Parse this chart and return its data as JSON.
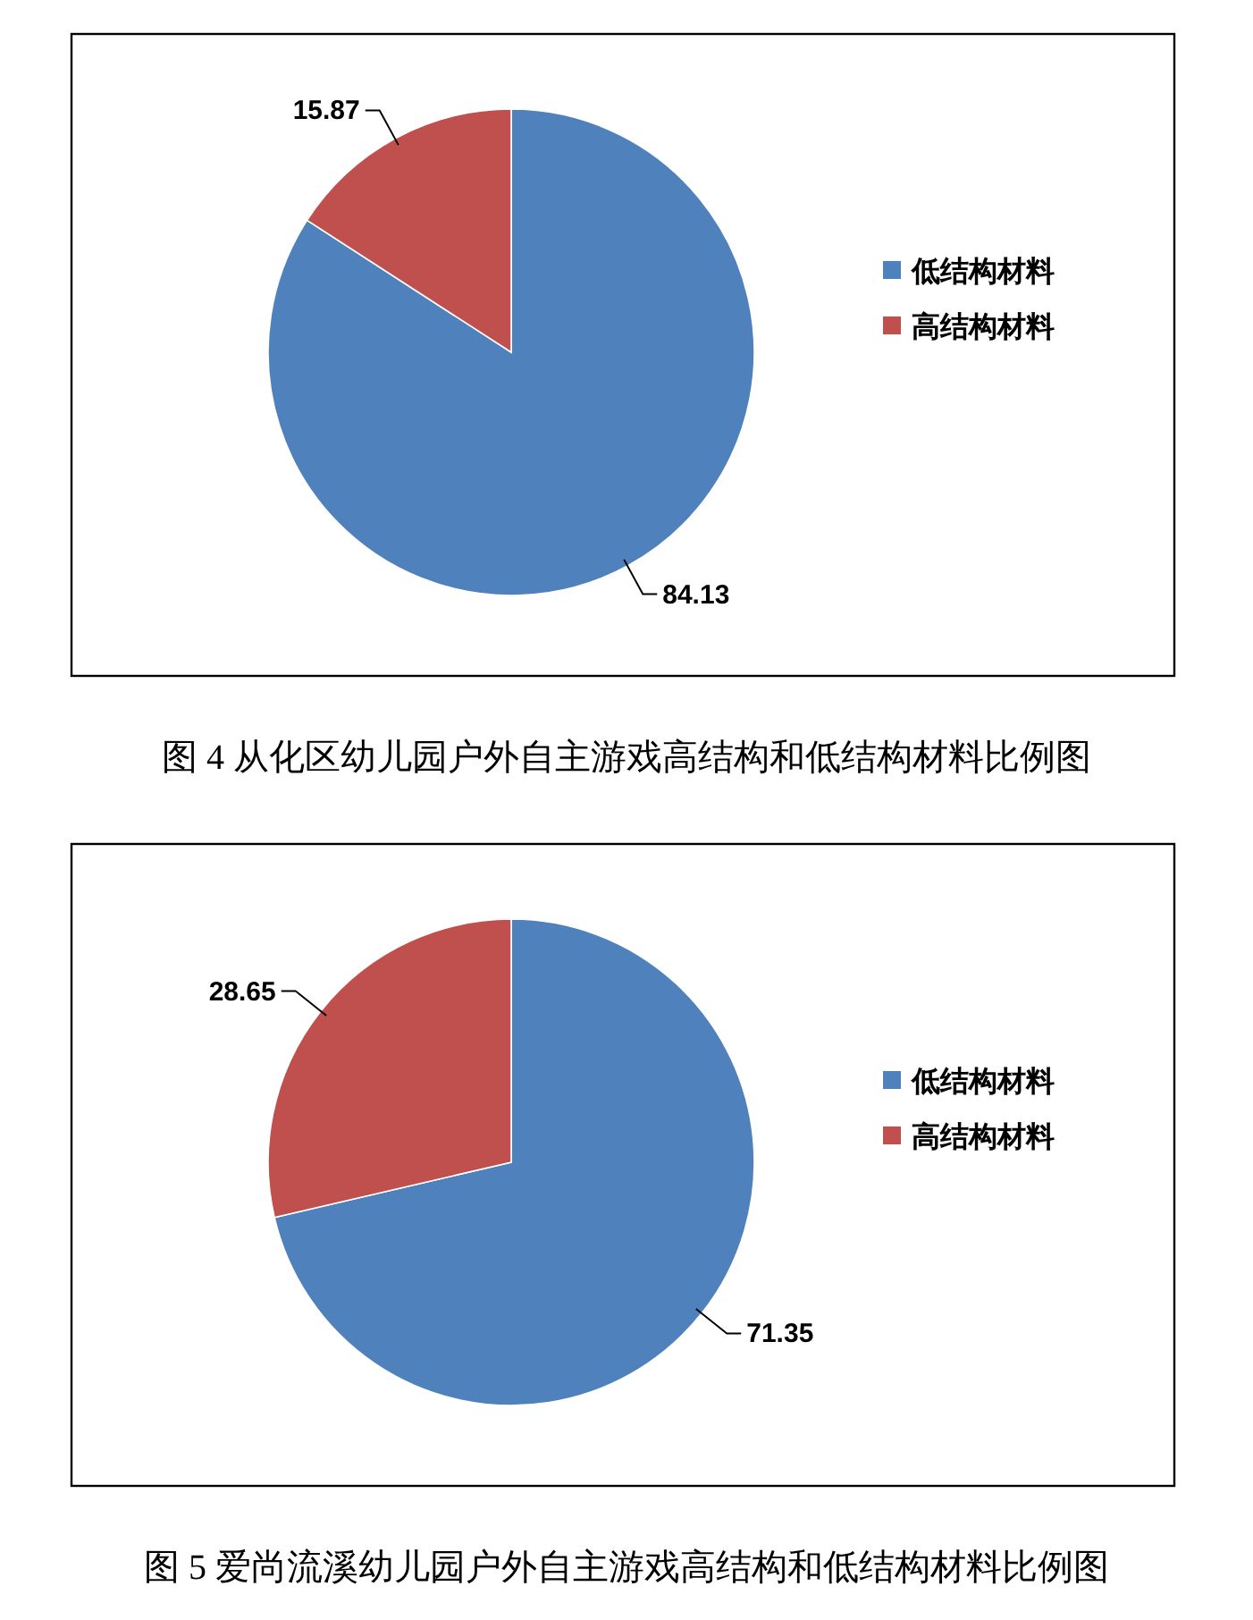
{
  "chart_data": [
    {
      "type": "pie",
      "title": "图 4 从化区幼儿园户外自主游戏高结构和低结构材料比例图",
      "categories": [
        "低结构材料",
        "高结构材料"
      ],
      "values": [
        84.13,
        15.87
      ],
      "colors": [
        "#4f81bd",
        "#c0504d"
      ],
      "data_labels": true,
      "legend": "right"
    },
    {
      "type": "pie",
      "title": "图 5 爱尚流溪幼儿园户外自主游戏高结构和低结构材料比例图",
      "categories": [
        "低结构材料",
        "高结构材料"
      ],
      "values": [
        71.35,
        28.65
      ],
      "colors": [
        "#4f81bd",
        "#c0504d"
      ],
      "data_labels": true,
      "legend": "right"
    }
  ]
}
